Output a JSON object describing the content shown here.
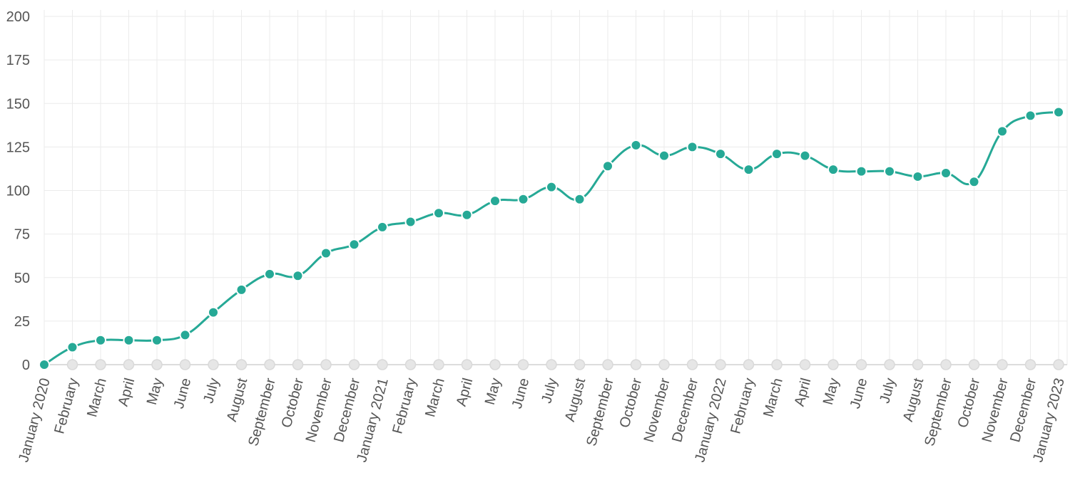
{
  "chart_data": {
    "type": "line",
    "title": "",
    "xlabel": "",
    "ylabel": "",
    "ylim": [
      0,
      200
    ],
    "yticks": [
      0,
      25,
      50,
      75,
      100,
      125,
      150,
      175,
      200
    ],
    "grid": true,
    "legend": "none",
    "categories": [
      "January 2020",
      "February",
      "March",
      "April",
      "May",
      "June",
      "July",
      "August",
      "September",
      "October",
      "November",
      "December",
      "January 2021",
      "February",
      "March",
      "April",
      "May",
      "June",
      "July",
      "August",
      "September",
      "October",
      "November",
      "December",
      "January 2022",
      "February",
      "March",
      "April",
      "May",
      "June",
      "July",
      "August",
      "September",
      "October",
      "November",
      "December",
      "January 2023"
    ],
    "series": [
      {
        "values": [
          0,
          10,
          14,
          14,
          14,
          17,
          30,
          43,
          52,
          51,
          64,
          69,
          79,
          82,
          87,
          86,
          94,
          95,
          102,
          95,
          114,
          126,
          120,
          125,
          121,
          112,
          121,
          120,
          112,
          111,
          111,
          108,
          110,
          105,
          134,
          143,
          145
        ],
        "color": "#26a996"
      }
    ],
    "baseline_marker_color": "#e6e6e6"
  }
}
